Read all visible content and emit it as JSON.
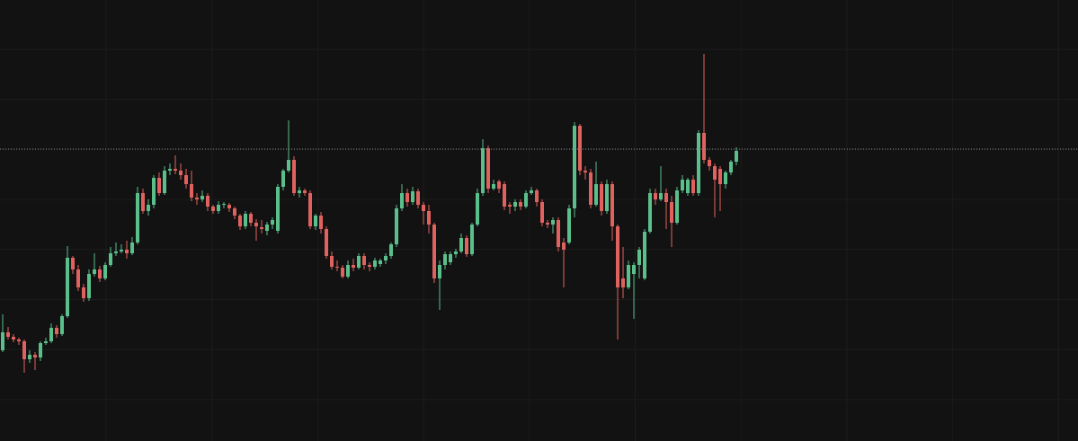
{
  "chart_data": {
    "type": "candlestick",
    "up_color": "#5bbf8c",
    "down_color": "#e0625f",
    "price_line_color": "#8a8a8a",
    "ylim": [
      9,
      500
    ],
    "price_line": 334,
    "open": [
      110,
      130,
      125,
      122,
      120,
      100,
      105,
      102,
      118,
      120,
      135,
      128,
      148,
      213,
      200,
      180,
      168,
      195,
      200,
      190,
      205,
      218,
      220,
      222,
      218,
      230,
      285,
      265,
      272,
      302,
      285,
      310,
      312,
      310,
      305,
      295,
      280,
      278,
      282,
      270,
      265,
      272,
      272,
      268,
      260,
      248,
      262,
      252,
      247,
      243,
      250,
      243,
      292,
      310,
      322,
      285,
      288,
      285,
      248,
      260,
      245,
      215,
      203,
      202,
      192,
      205,
      202,
      215,
      205,
      203,
      206,
      210,
      215,
      228,
      268,
      285,
      275,
      287,
      272,
      265,
      250,
      190,
      205,
      208,
      217,
      220,
      235,
      217,
      250,
      285,
      335,
      290,
      298,
      295,
      272,
      270,
      275,
      270,
      285,
      288,
      275,
      252,
      250,
      255,
      230,
      230,
      268,
      360,
      310,
      308,
      272,
      295,
      265,
      295,
      248,
      190,
      180,
      195,
      205,
      190,
      242,
      285,
      278,
      285,
      275,
      252,
      288,
      285,
      300,
      285,
      352,
      322,
      315,
      312,
      295,
      308,
      320
    ],
    "high": [
      150,
      136,
      128,
      124,
      122,
      110,
      108,
      120,
      124,
      140,
      138,
      150,
      226,
      215,
      205,
      184,
      200,
      218,
      204,
      208,
      225,
      230,
      228,
      232,
      236,
      292,
      290,
      278,
      305,
      308,
      315,
      318,
      327,
      318,
      312,
      310,
      285,
      288,
      285,
      272,
      276,
      275,
      274,
      270,
      262,
      265,
      264,
      256,
      255,
      253,
      258,
      295,
      312,
      366,
      326,
      292,
      290,
      288,
      262,
      264,
      248,
      220,
      210,
      205,
      210,
      212,
      218,
      218,
      208,
      213,
      212,
      218,
      230,
      272,
      295,
      290,
      292,
      290,
      275,
      272,
      252,
      210,
      220,
      220,
      223,
      240,
      238,
      252,
      290,
      345,
      338,
      300,
      300,
      298,
      275,
      278,
      278,
      288,
      292,
      290,
      278,
      255,
      258,
      258,
      235,
      272,
      364,
      362,
      315,
      312,
      320,
      298,
      300,
      298,
      250,
      225,
      210,
      208,
      225,
      245,
      290,
      290,
      315,
      290,
      282,
      292,
      305,
      302,
      305,
      355,
      440,
      325,
      318,
      315,
      310,
      322,
      336
    ],
    "low": [
      108,
      122,
      119,
      116,
      85,
      96,
      88,
      98,
      116,
      118,
      124,
      126,
      146,
      195,
      176,
      164,
      165,
      192,
      186,
      188,
      203,
      215,
      218,
      212,
      216,
      228,
      262,
      260,
      268,
      282,
      283,
      305,
      306,
      300,
      290,
      276,
      272,
      275,
      265,
      262,
      262,
      268,
      264,
      256,
      244,
      245,
      248,
      232,
      240,
      238,
      245,
      240,
      288,
      308,
      282,
      280,
      282,
      245,
      244,
      240,
      212,
      200,
      198,
      190,
      190,
      198,
      200,
      200,
      198,
      200,
      203,
      206,
      212,
      225,
      265,
      270,
      272,
      268,
      250,
      240,
      185,
      155,
      200,
      205,
      213,
      218,
      214,
      215,
      248,
      282,
      285,
      288,
      285,
      266,
      262,
      265,
      266,
      268,
      283,
      270,
      248,
      246,
      240,
      220,
      180,
      228,
      258,
      305,
      300,
      268,
      270,
      260,
      262,
      232,
      122,
      168,
      178,
      145,
      190,
      188,
      240,
      272,
      276,
      245,
      225,
      250,
      285,
      282,
      282,
      282,
      318,
      310,
      258,
      265,
      290,
      305,
      316
    ],
    "close": [
      130,
      125,
      122,
      120,
      100,
      105,
      102,
      118,
      120,
      135,
      128,
      148,
      213,
      200,
      180,
      168,
      195,
      200,
      190,
      205,
      218,
      220,
      222,
      218,
      230,
      285,
      265,
      272,
      302,
      285,
      310,
      312,
      310,
      305,
      295,
      280,
      278,
      282,
      270,
      265,
      272,
      273,
      268,
      260,
      248,
      262,
      252,
      248,
      245,
      250,
      255,
      292,
      310,
      322,
      285,
      288,
      285,
      248,
      260,
      245,
      215,
      203,
      202,
      192,
      205,
      202,
      215,
      205,
      203,
      210,
      210,
      215,
      228,
      268,
      285,
      275,
      287,
      272,
      265,
      250,
      190,
      205,
      217,
      217,
      220,
      235,
      217,
      250,
      285,
      335,
      290,
      295,
      290,
      270,
      270,
      275,
      270,
      285,
      288,
      275,
      252,
      250,
      255,
      225,
      222,
      268,
      360,
      310,
      308,
      272,
      295,
      265,
      295,
      248,
      180,
      180,
      205,
      205,
      222,
      242,
      285,
      278,
      285,
      275,
      252,
      288,
      300,
      300,
      285,
      352,
      322,
      315,
      300,
      295,
      308,
      320,
      332
    ]
  }
}
